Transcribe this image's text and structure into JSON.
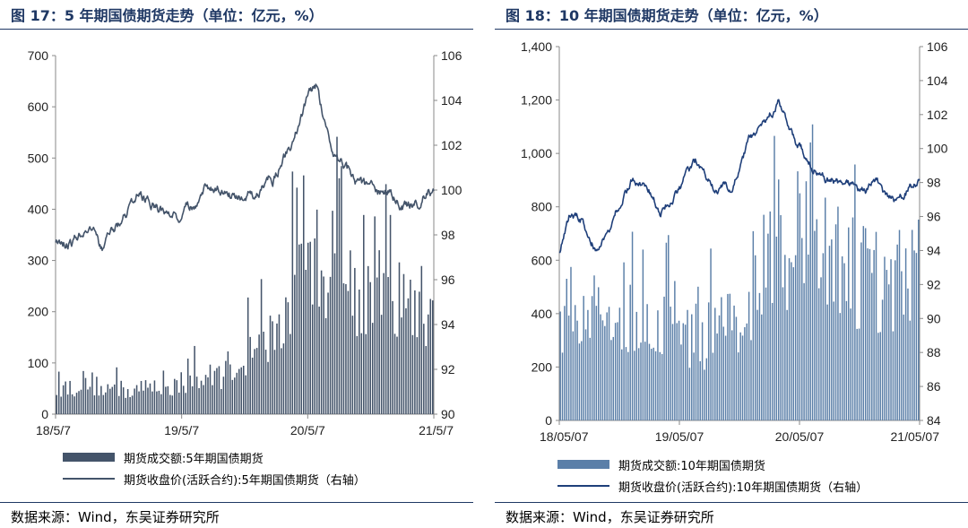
{
  "left": {
    "title": "图 17：5 年期国债期货走势（单位：亿元，%）",
    "source": "数据来源：Wind，东吴证券研究所",
    "legend_bar": "期货成交额:5年期国债期货",
    "legend_line": "期货收盘价(活跃合约):5年期国债期货（右轴）",
    "colors": {
      "bar": "#44546a",
      "line": "#44546a"
    }
  },
  "right": {
    "title": "图 18：10 年期国债期货走势（单位：亿元，%）",
    "source": "数据来源：Wind，东吴证券研究所",
    "legend_bar": "期货成交额:10年期国债期货",
    "legend_line": "期货收盘价(活跃合约):10年期国债期货（右轴）",
    "colors": {
      "bar": "#5b7fa8",
      "line": "#1f3f7a"
    }
  },
  "chart_data": [
    {
      "type": "bar+line",
      "title": "图 17：5 年期国债期货走势（单位：亿元，%）",
      "x_ticks": [
        "18/5/7",
        "19/5/7",
        "20/5/7",
        "21/5/7"
      ],
      "y_left": {
        "min": 0,
        "max": 700,
        "ticks": [
          "0",
          "100",
          "200",
          "300",
          "400",
          "500",
          "600",
          "700"
        ]
      },
      "y_right": {
        "min": 90,
        "max": 106,
        "ticks": [
          "90",
          "92",
          "94",
          "96",
          "98",
          "100",
          "102",
          "104",
          "106"
        ]
      },
      "series": [
        {
          "name": "期货成交额:5年期国债期货",
          "kind": "bar",
          "axis": "left",
          "anchors": [
            [
              0,
              60
            ],
            [
              0.03,
              55
            ],
            [
              0.08,
              70
            ],
            [
              0.12,
              55
            ],
            [
              0.2,
              50
            ],
            [
              0.28,
              60
            ],
            [
              0.35,
              65
            ],
            [
              0.42,
              80
            ],
            [
              0.48,
              110
            ],
            [
              0.55,
              140
            ],
            [
              0.6,
              190
            ],
            [
              0.65,
              280
            ],
            [
              0.7,
              340
            ],
            [
              0.75,
              300
            ],
            [
              0.8,
              260
            ],
            [
              0.85,
              250
            ],
            [
              0.9,
              240
            ],
            [
              0.95,
              230
            ],
            [
              1,
              220
            ]
          ]
        },
        {
          "name": "期货收盘价(活跃合约):5年期国债期货（右轴）",
          "kind": "line",
          "axis": "right",
          "anchors": [
            [
              0,
              97.8
            ],
            [
              0.05,
              97.8
            ],
            [
              0.08,
              98.4
            ],
            [
              0.12,
              97.3
            ],
            [
              0.18,
              98.6
            ],
            [
              0.22,
              99.9
            ],
            [
              0.26,
              99.2
            ],
            [
              0.33,
              98.8
            ],
            [
              0.4,
              100.2
            ],
            [
              0.47,
              99.7
            ],
            [
              0.53,
              99.8
            ],
            [
              0.58,
              100.5
            ],
            [
              0.62,
              102.0
            ],
            [
              0.66,
              103.8
            ],
            [
              0.69,
              104.7
            ],
            [
              0.72,
              102.4
            ],
            [
              0.76,
              101.1
            ],
            [
              0.8,
              100.2
            ],
            [
              0.85,
              99.7
            ],
            [
              0.89,
              99.8
            ],
            [
              0.92,
              99.3
            ],
            [
              0.95,
              99.4
            ],
            [
              0.98,
              99.8
            ],
            [
              1,
              100.0
            ]
          ]
        }
      ]
    },
    {
      "type": "bar+line",
      "title": "图 18：10 年期国债期货走势（单位：亿元，%）",
      "x_ticks": [
        "18/05/07",
        "19/05/07",
        "20/05/07",
        "21/05/07"
      ],
      "y_left": {
        "min": 0,
        "max": 1400,
        "ticks": [
          "0",
          "200",
          "400",
          "600",
          "800",
          "1,000",
          "1,200",
          "1,400"
        ]
      },
      "y_right": {
        "min": 84,
        "max": 106,
        "ticks": [
          "84",
          "86",
          "88",
          "90",
          "92",
          "94",
          "96",
          "98",
          "100",
          "102",
          "104",
          "106"
        ]
      },
      "series": [
        {
          "name": "期货成交额:10年期国债期货",
          "kind": "bar",
          "axis": "left",
          "anchors": [
            [
              0,
              430
            ],
            [
              0.05,
              470
            ],
            [
              0.1,
              430
            ],
            [
              0.15,
              390
            ],
            [
              0.2,
              430
            ],
            [
              0.25,
              400
            ],
            [
              0.3,
              370
            ],
            [
              0.35,
              350
            ],
            [
              0.4,
              340
            ],
            [
              0.45,
              360
            ],
            [
              0.5,
              430
            ],
            [
              0.55,
              580
            ],
            [
              0.6,
              700
            ],
            [
              0.65,
              760
            ],
            [
              0.7,
              680
            ],
            [
              0.75,
              640
            ],
            [
              0.8,
              600
            ],
            [
              0.85,
              580
            ],
            [
              0.9,
              560
            ],
            [
              0.95,
              560
            ],
            [
              1,
              580
            ]
          ]
        },
        {
          "name": "期货收盘价(活跃合约):10年期国债期货（右轴）",
          "kind": "line",
          "axis": "right",
          "anchors": [
            [
              0,
              93.9
            ],
            [
              0.03,
              96.2
            ],
            [
              0.06,
              95.9
            ],
            [
              0.1,
              94.3
            ],
            [
              0.14,
              95.6
            ],
            [
              0.2,
              98.2
            ],
            [
              0.25,
              97.4
            ],
            [
              0.28,
              96.4
            ],
            [
              0.32,
              97.3
            ],
            [
              0.38,
              99.1
            ],
            [
              0.43,
              97.6
            ],
            [
              0.48,
              97.9
            ],
            [
              0.53,
              100.6
            ],
            [
              0.57,
              101.1
            ],
            [
              0.61,
              102.9
            ],
            [
              0.63,
              101.6
            ],
            [
              0.66,
              100.1
            ],
            [
              0.7,
              99.2
            ],
            [
              0.75,
              98.1
            ],
            [
              0.8,
              97.8
            ],
            [
              0.85,
              97.4
            ],
            [
              0.88,
              98.1
            ],
            [
              0.91,
              97.1
            ],
            [
              0.94,
              96.8
            ],
            [
              0.97,
              97.6
            ],
            [
              1,
              98.0
            ]
          ]
        }
      ]
    }
  ]
}
